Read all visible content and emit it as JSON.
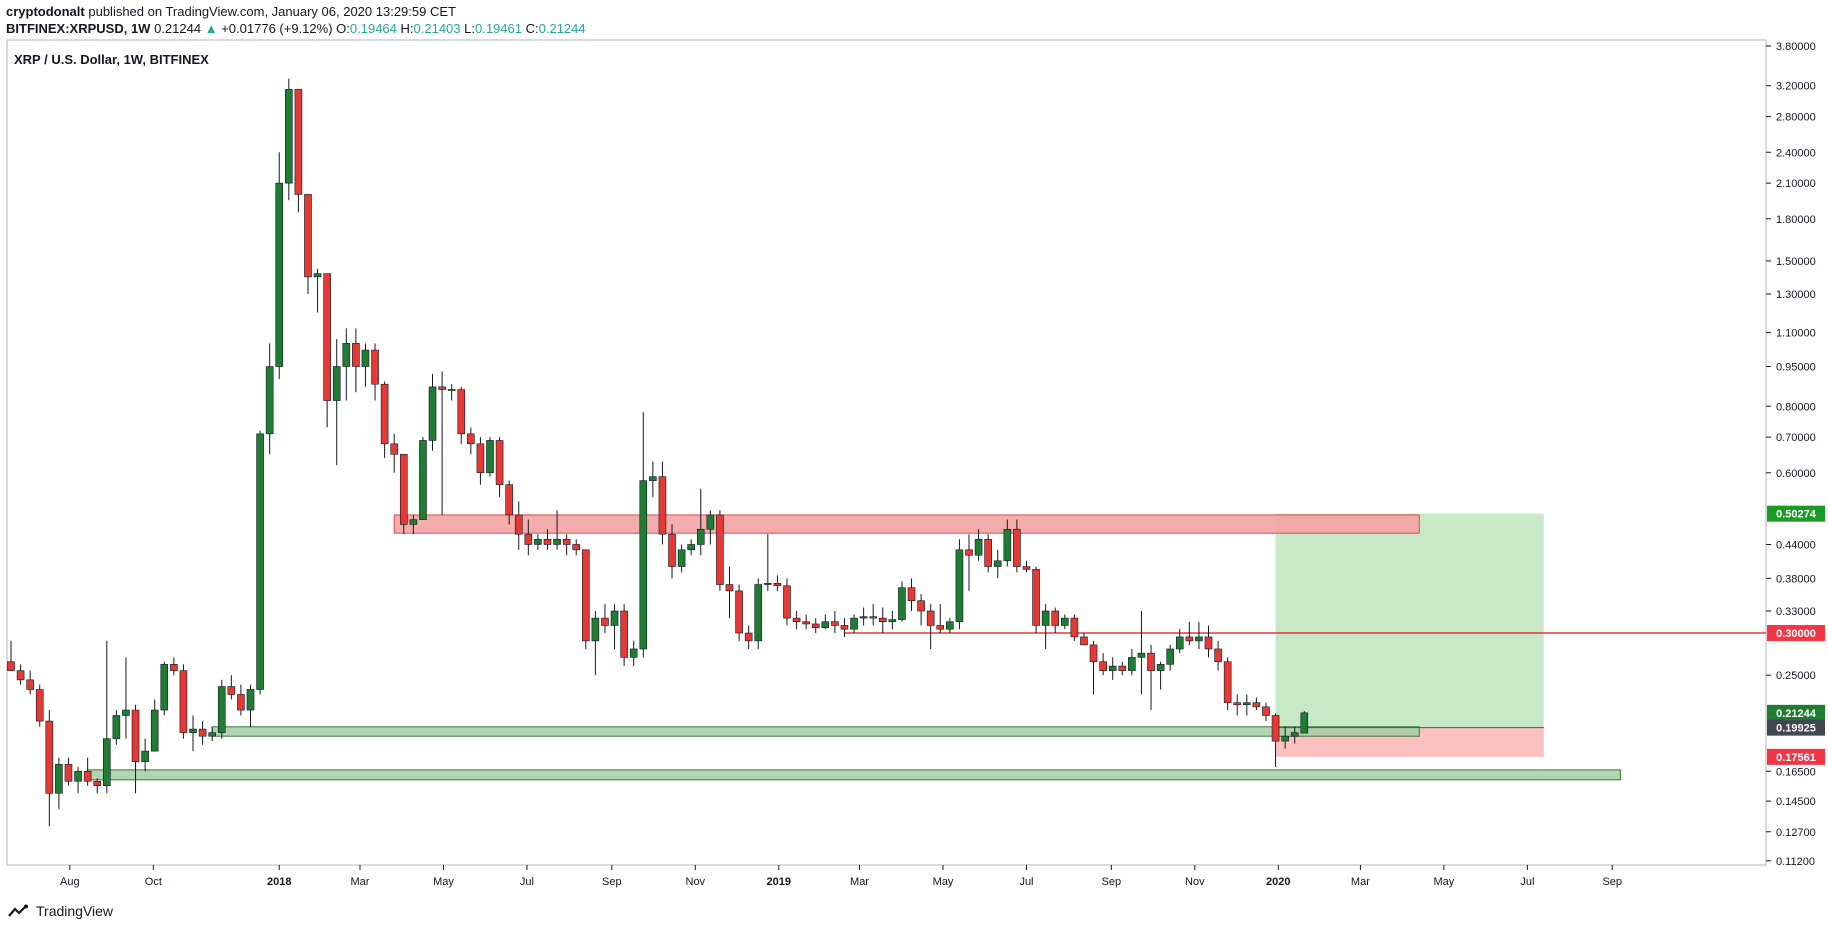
{
  "header": {
    "author": "cryptodonalt",
    "published": "published on TradingView.com, January 06, 2020 13:29:59 CET",
    "symbol": "BITFINEX:XRPUSD, 1W",
    "last": "0.21244",
    "arrow": "▲",
    "change": "+0.01776 (+9.12%)",
    "o_label": "O:",
    "o": "0.19464",
    "h_label": "H:",
    "h": "0.21403",
    "l_label": "L:",
    "l": "0.19461",
    "c_label": "C:",
    "c": "0.21244"
  },
  "footer": {
    "brand": "TradingView"
  },
  "colors": {
    "up": "#1e7d32",
    "down": "#e53935",
    "upWick": "#000000",
    "zoneRed": "#f4a3a3",
    "zoneGreen": "#a8cfa8",
    "target": "#c8e9c8",
    "stop": "#fbc0c0",
    "accent": "#26a69a"
  },
  "chart_data": {
    "type": "candlestick",
    "title": "XRP / U.S. Dollar, 1W, BITFINEX",
    "scale": "log",
    "ylim": [
      0.11,
      3.9
    ],
    "y_ticks": [
      "0.11200",
      "0.12700",
      "0.14500",
      "0.16500",
      "0.19925",
      "0.21244",
      "0.25000",
      "0.30000",
      "0.33000",
      "0.38000",
      "0.44000",
      "0.50274",
      "0.60000",
      "0.70000",
      "0.80000",
      "0.95000",
      "1.10000",
      "1.30000",
      "1.50000",
      "1.80000",
      "2.10000",
      "2.40000",
      "2.80000",
      "3.20000",
      "3.80000"
    ],
    "y_tick_values": [
      0.112,
      0.127,
      0.145,
      0.165,
      0.199,
      0.212,
      0.25,
      0.3,
      0.33,
      0.38,
      0.44,
      0.503,
      0.6,
      0.7,
      0.8,
      0.95,
      1.1,
      1.3,
      1.5,
      1.8,
      2.1,
      2.4,
      2.8,
      3.2,
      3.8
    ],
    "x_labels": [
      {
        "label": "Aug",
        "date": "2017-08-01"
      },
      {
        "label": "Oct",
        "date": "2017-10-01"
      },
      {
        "label": "2018",
        "date": "2018-01-01"
      },
      {
        "label": "Mar",
        "date": "2018-03-01"
      },
      {
        "label": "May",
        "date": "2018-05-01"
      },
      {
        "label": "Jul",
        "date": "2018-07-01"
      },
      {
        "label": "Sep",
        "date": "2018-09-01"
      },
      {
        "label": "Nov",
        "date": "2018-11-01"
      },
      {
        "label": "2019",
        "date": "2019-01-01"
      },
      {
        "label": "Mar",
        "date": "2019-03-01"
      },
      {
        "label": "May",
        "date": "2019-05-01"
      },
      {
        "label": "Jul",
        "date": "2019-07-01"
      },
      {
        "label": "Sep",
        "date": "2019-09-01"
      },
      {
        "label": "Nov",
        "date": "2019-11-01"
      },
      {
        "label": "2020",
        "date": "2020-01-01"
      },
      {
        "label": "Mar",
        "date": "2020-03-01"
      },
      {
        "label": "May",
        "date": "2020-05-01"
      },
      {
        "label": "Jul",
        "date": "2020-07-01"
      },
      {
        "label": "Sep",
        "date": "2020-09-01"
      }
    ],
    "first_week": "2017-06-19",
    "candles": [
      [
        0.265,
        0.29,
        0.26,
        0.255
      ],
      [
        0.255,
        0.262,
        0.24,
        0.245
      ],
      [
        0.245,
        0.255,
        0.23,
        0.235
      ],
      [
        0.235,
        0.24,
        0.2,
        0.205
      ],
      [
        0.205,
        0.215,
        0.13,
        0.15
      ],
      [
        0.15,
        0.175,
        0.14,
        0.17
      ],
      [
        0.17,
        0.175,
        0.155,
        0.158
      ],
      [
        0.158,
        0.168,
        0.15,
        0.165
      ],
      [
        0.165,
        0.175,
        0.155,
        0.158
      ],
      [
        0.158,
        0.16,
        0.15,
        0.155
      ],
      [
        0.155,
        0.29,
        0.15,
        0.19
      ],
      [
        0.19,
        0.215,
        0.185,
        0.21
      ],
      [
        0.21,
        0.27,
        0.19,
        0.215
      ],
      [
        0.215,
        0.22,
        0.15,
        0.172
      ],
      [
        0.172,
        0.19,
        0.165,
        0.18
      ],
      [
        0.18,
        0.225,
        0.18,
        0.215
      ],
      [
        0.215,
        0.265,
        0.21,
        0.262
      ],
      [
        0.262,
        0.27,
        0.25,
        0.255
      ],
      [
        0.255,
        0.262,
        0.19,
        0.195
      ],
      [
        0.195,
        0.21,
        0.18,
        0.198
      ],
      [
        0.198,
        0.205,
        0.185,
        0.192
      ],
      [
        0.192,
        0.2,
        0.188,
        0.195
      ],
      [
        0.195,
        0.245,
        0.19,
        0.238
      ],
      [
        0.238,
        0.25,
        0.225,
        0.23
      ],
      [
        0.23,
        0.24,
        0.21,
        0.215
      ],
      [
        0.215,
        0.24,
        0.2,
        0.235
      ],
      [
        0.235,
        0.72,
        0.23,
        0.71
      ],
      [
        0.71,
        1.05,
        0.65,
        0.95
      ],
      [
        0.95,
        2.4,
        0.9,
        2.1
      ],
      [
        2.1,
        3.3,
        1.95,
        3.15
      ],
      [
        3.15,
        3.15,
        1.85,
        2.0
      ],
      [
        2.0,
        2.0,
        1.3,
        1.4
      ],
      [
        1.4,
        1.45,
        1.2,
        1.42
      ],
      [
        1.42,
        1.42,
        0.73,
        0.82
      ],
      [
        0.82,
        1.07,
        0.62,
        0.95
      ],
      [
        0.95,
        1.12,
        0.82,
        1.05
      ],
      [
        1.05,
        1.12,
        0.85,
        0.95
      ],
      [
        0.95,
        1.05,
        0.87,
        1.02
      ],
      [
        1.02,
        1.05,
        0.82,
        0.88
      ],
      [
        0.88,
        0.89,
        0.64,
        0.68
      ],
      [
        0.68,
        0.71,
        0.6,
        0.65
      ],
      [
        0.65,
        0.65,
        0.46,
        0.48
      ],
      [
        0.48,
        0.5,
        0.46,
        0.49
      ],
      [
        0.49,
        0.7,
        0.49,
        0.69
      ],
      [
        0.69,
        0.92,
        0.66,
        0.87
      ],
      [
        0.87,
        0.93,
        0.5,
        0.86
      ],
      [
        0.86,
        0.88,
        0.82,
        0.86
      ],
      [
        0.86,
        0.87,
        0.68,
        0.71
      ],
      [
        0.71,
        0.73,
        0.65,
        0.68
      ],
      [
        0.68,
        0.7,
        0.57,
        0.6
      ],
      [
        0.6,
        0.7,
        0.59,
        0.69
      ],
      [
        0.69,
        0.7,
        0.54,
        0.57
      ],
      [
        0.57,
        0.58,
        0.48,
        0.5
      ],
      [
        0.5,
        0.53,
        0.43,
        0.46
      ],
      [
        0.46,
        0.49,
        0.42,
        0.44
      ],
      [
        0.44,
        0.46,
        0.43,
        0.45
      ],
      [
        0.45,
        0.47,
        0.43,
        0.44
      ],
      [
        0.44,
        0.51,
        0.43,
        0.45
      ],
      [
        0.45,
        0.46,
        0.42,
        0.44
      ],
      [
        0.44,
        0.45,
        0.42,
        0.43
      ],
      [
        0.43,
        0.43,
        0.28,
        0.29
      ],
      [
        0.29,
        0.33,
        0.25,
        0.32
      ],
      [
        0.32,
        0.34,
        0.3,
        0.31
      ],
      [
        0.31,
        0.34,
        0.28,
        0.33
      ],
      [
        0.33,
        0.34,
        0.26,
        0.27
      ],
      [
        0.27,
        0.29,
        0.26,
        0.28
      ],
      [
        0.28,
        0.78,
        0.27,
        0.58
      ],
      [
        0.58,
        0.63,
        0.54,
        0.59
      ],
      [
        0.59,
        0.63,
        0.44,
        0.46
      ],
      [
        0.46,
        0.48,
        0.38,
        0.4
      ],
      [
        0.4,
        0.44,
        0.39,
        0.43
      ],
      [
        0.43,
        0.45,
        0.42,
        0.44
      ],
      [
        0.44,
        0.56,
        0.42,
        0.47
      ],
      [
        0.47,
        0.51,
        0.44,
        0.5
      ],
      [
        0.5,
        0.51,
        0.36,
        0.37
      ],
      [
        0.37,
        0.4,
        0.32,
        0.36
      ],
      [
        0.36,
        0.37,
        0.29,
        0.3
      ],
      [
        0.3,
        0.31,
        0.28,
        0.29
      ],
      [
        0.29,
        0.38,
        0.28,
        0.37
      ],
      [
        0.37,
        0.46,
        0.36,
        0.372
      ],
      [
        0.372,
        0.385,
        0.36,
        0.368
      ],
      [
        0.368,
        0.38,
        0.31,
        0.32
      ],
      [
        0.32,
        0.33,
        0.305,
        0.315
      ],
      [
        0.315,
        0.325,
        0.305,
        0.312
      ],
      [
        0.312,
        0.32,
        0.3,
        0.307
      ],
      [
        0.307,
        0.325,
        0.305,
        0.315
      ],
      [
        0.315,
        0.33,
        0.3,
        0.31
      ],
      [
        0.31,
        0.32,
        0.295,
        0.305
      ],
      [
        0.305,
        0.325,
        0.3,
        0.32
      ],
      [
        0.32,
        0.335,
        0.31,
        0.322
      ],
      [
        0.322,
        0.34,
        0.31,
        0.32
      ],
      [
        0.32,
        0.335,
        0.3,
        0.315
      ],
      [
        0.315,
        0.33,
        0.305,
        0.318
      ],
      [
        0.318,
        0.375,
        0.315,
        0.365
      ],
      [
        0.365,
        0.38,
        0.33,
        0.345
      ],
      [
        0.345,
        0.355,
        0.31,
        0.33
      ],
      [
        0.33,
        0.34,
        0.28,
        0.31
      ],
      [
        0.31,
        0.34,
        0.3,
        0.305
      ],
      [
        0.305,
        0.32,
        0.3,
        0.315
      ],
      [
        0.315,
        0.45,
        0.305,
        0.43
      ],
      [
        0.43,
        0.46,
        0.36,
        0.42
      ],
      [
        0.42,
        0.47,
        0.41,
        0.45
      ],
      [
        0.45,
        0.46,
        0.39,
        0.4
      ],
      [
        0.4,
        0.43,
        0.38,
        0.41
      ],
      [
        0.41,
        0.49,
        0.4,
        0.47
      ],
      [
        0.47,
        0.49,
        0.39,
        0.4
      ],
      [
        0.4,
        0.41,
        0.39,
        0.395
      ],
      [
        0.395,
        0.4,
        0.3,
        0.31
      ],
      [
        0.31,
        0.34,
        0.28,
        0.33
      ],
      [
        0.33,
        0.335,
        0.3,
        0.31
      ],
      [
        0.31,
        0.325,
        0.305,
        0.32
      ],
      [
        0.32,
        0.325,
        0.29,
        0.295
      ],
      [
        0.295,
        0.3,
        0.285,
        0.285
      ],
      [
        0.285,
        0.29,
        0.23,
        0.265
      ],
      [
        0.265,
        0.275,
        0.25,
        0.255
      ],
      [
        0.255,
        0.27,
        0.245,
        0.26
      ],
      [
        0.26,
        0.265,
        0.25,
        0.255
      ],
      [
        0.255,
        0.28,
        0.25,
        0.27
      ],
      [
        0.27,
        0.33,
        0.23,
        0.275
      ],
      [
        0.275,
        0.285,
        0.215,
        0.255
      ],
      [
        0.255,
        0.265,
        0.235,
        0.262
      ],
      [
        0.262,
        0.285,
        0.255,
        0.28
      ],
      [
        0.28,
        0.305,
        0.275,
        0.295
      ],
      [
        0.295,
        0.315,
        0.285,
        0.29
      ],
      [
        0.29,
        0.315,
        0.28,
        0.295
      ],
      [
        0.295,
        0.31,
        0.27,
        0.28
      ],
      [
        0.28,
        0.29,
        0.255,
        0.265
      ],
      [
        0.265,
        0.27,
        0.215,
        0.222
      ],
      [
        0.222,
        0.23,
        0.21,
        0.22
      ],
      [
        0.22,
        0.23,
        0.21,
        0.222
      ],
      [
        0.222,
        0.227,
        0.215,
        0.218
      ],
      [
        0.218,
        0.222,
        0.205,
        0.21
      ],
      [
        0.21,
        0.212,
        0.168,
        0.188
      ],
      [
        0.188,
        0.2,
        0.182,
        0.192
      ],
      [
        0.192,
        0.2,
        0.186,
        0.195
      ],
      [
        0.194645,
        0.21403,
        0.19461,
        0.21244
      ]
    ],
    "zones": [
      {
        "type": "resistance",
        "from": "2018-03-26",
        "to": "2020-04-13",
        "low": 0.462,
        "high": 0.5
      },
      {
        "type": "support",
        "from": "2017-11-13",
        "to": "2020-04-13",
        "low": 0.192,
        "high": 0.2
      },
      {
        "type": "support",
        "from": "2017-08-14",
        "to": "2020-09-07",
        "low": 0.159,
        "high": 0.166
      }
    ],
    "levels": [
      {
        "value": 0.3,
        "label": "0.30000",
        "from": "2019-02-18"
      }
    ],
    "position": {
      "entry": 0.19925,
      "target": 0.50274,
      "stop": 0.17561,
      "from": "2019-12-30",
      "to": "2020-07-13"
    },
    "price_badges": [
      {
        "label": "0.50274",
        "value": 0.50274,
        "color": "#1b9b24"
      },
      {
        "label": "0.30000",
        "value": 0.3,
        "color": "#f23645"
      },
      {
        "label": "0.21244",
        "value": 0.21244,
        "color": "#1e7d32"
      },
      {
        "label": "0.19925",
        "value": 0.19925,
        "color": "#434651"
      },
      {
        "label": "0.17561",
        "value": 0.17561,
        "color": "#f23645"
      }
    ]
  }
}
